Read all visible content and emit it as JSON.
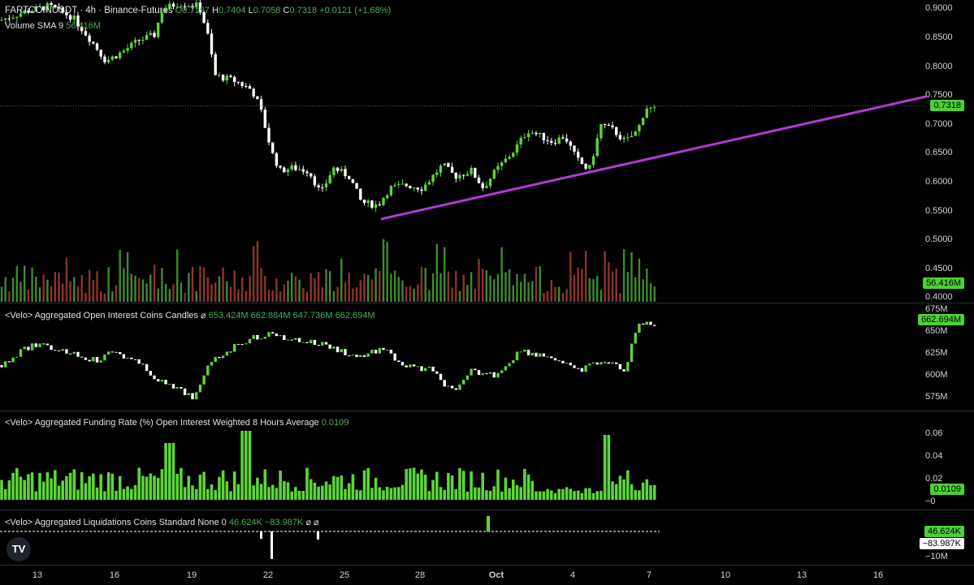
{
  "header": {
    "symbol": "FARTCOINUSDT · 4h · Binance-Futures",
    "o_label": "O",
    "o": "0.7197",
    "h_label": "H",
    "h": "0.7404",
    "l_label": "L",
    "l": "0.7058",
    "c_label": "C",
    "c": "0.7318",
    "change": "+0.0121 (+1.68%)",
    "volume_label": "Volume SMA 9",
    "volume_value": "56.416M"
  },
  "panes": {
    "oi_title": "<Velo> Aggregated Open Interest Coins Candles",
    "oi_values": "653.424M  662.884M  647.736M  662.694M",
    "funding_title": "<Velo> Aggregated Funding Rate (%) Open Interest Weighted 8 Hours Average",
    "funding_value": "0.0109",
    "liq_title": "<Velo> Aggregated Liquidations Coins Standard None 0",
    "liq_values": "46.624K  −83.987K"
  },
  "price_axis": [
    "0.9000",
    "0.8500",
    "0.8000",
    "0.7500",
    "0.7000",
    "0.6500",
    "0.6000",
    "0.5500",
    "0.5000",
    "0.4500",
    "0.4000"
  ],
  "oi_axis": [
    "675M",
    "650M",
    "625M",
    "600M",
    "575M"
  ],
  "funding_axis": [
    "0.06",
    "0.04",
    "0.02",
    "−0"
  ],
  "liq_axis": [
    "−10M"
  ],
  "tags": {
    "price": "0.7318",
    "volume": "56.416M",
    "oi": "662.694M",
    "funding": "0.0109",
    "liq_pos": "46.624K",
    "liq_neg": "−83.987K"
  },
  "x_axis": [
    "13",
    "16",
    "19",
    "22",
    "25",
    "28",
    "Oct",
    "4",
    "7",
    "10",
    "13",
    "16"
  ],
  "colors": {
    "up": "#5ed43a",
    "down": "#ffffff",
    "trendline": "#b23ad4",
    "volume_up": "#3e8a2e",
    "volume_down": "#8a3528"
  },
  "logo": "TV"
}
